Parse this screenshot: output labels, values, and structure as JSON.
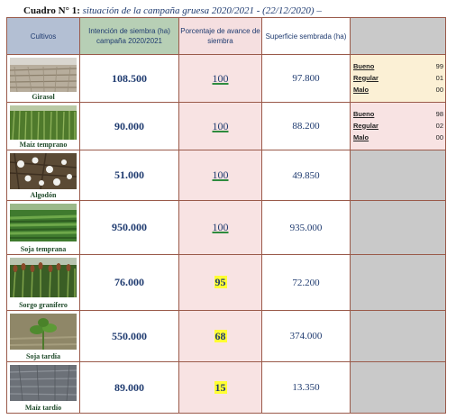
{
  "caption": {
    "label": "Cuadro N° 1: ",
    "title": "situación de la campaña gruesa 2020/2021 - (22/12/2020) –"
  },
  "headers": {
    "cultivos": "Cultivos",
    "intencion": "Intención de siembra (ha) campaña 2020/2021",
    "porcentaje": "Porcentaje de avance de siembra",
    "superficie": "Superficie sembrada (ha)"
  },
  "rows": [
    {
      "crop": "Girasol",
      "intencion": "108.500",
      "porcentaje": "100",
      "superficie": "97.800",
      "condition": {
        "bueno_label": "Bueno",
        "bueno": "99",
        "regular_label": "Regular",
        "regular": "01",
        "malo_label": "Malo",
        "malo": "00"
      }
    },
    {
      "crop": "Maíz temprano",
      "intencion": "90.000",
      "porcentaje": "100",
      "superficie": "88.200",
      "condition": {
        "bueno_label": "Bueno",
        "bueno": "98",
        "regular_label": "Regular",
        "regular": "02",
        "malo_label": "Malo",
        "malo": "00"
      }
    },
    {
      "crop": "Algodón",
      "intencion": "51.000",
      "porcentaje": "100",
      "superficie": "49.850"
    },
    {
      "crop": "Soja temprana",
      "intencion": "950.000",
      "porcentaje": "100",
      "superficie": "935.000"
    },
    {
      "crop": "Sorgo granífero",
      "intencion": "76.000",
      "porcentaje": "95",
      "superficie": "72.200"
    },
    {
      "crop": "Soja tardía",
      "intencion": "550.000",
      "porcentaje": "68",
      "superficie": "374.000"
    },
    {
      "crop": "Maíz tardío",
      "intencion": "89.000",
      "porcentaje": "15",
      "superficie": "13.350"
    }
  ]
}
